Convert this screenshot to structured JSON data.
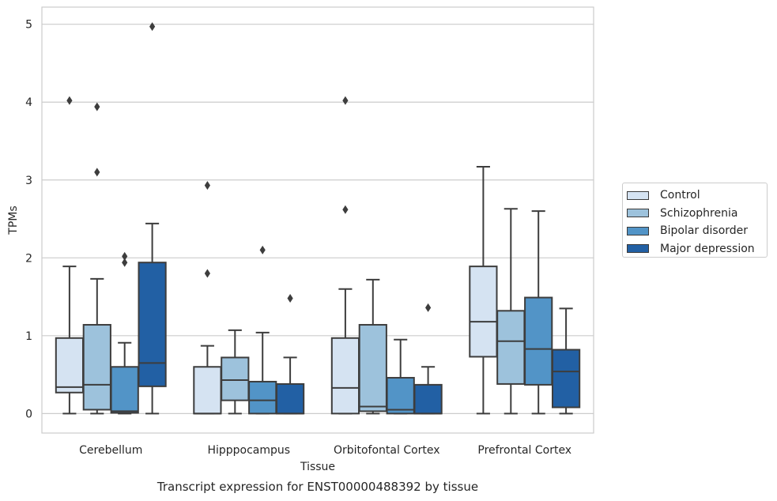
{
  "chart_data": {
    "type": "box",
    "title": "Transcript expression for ENST00000488392 by tissue",
    "xlabel": "Tissue",
    "ylabel": "TPMs",
    "ylim": [
      -0.25,
      5.22
    ],
    "yticks": [
      0,
      1,
      2,
      3,
      4,
      5
    ],
    "grid": "horizontal",
    "legend_position": "right",
    "categories": [
      "Cerebellum",
      "Hipppocampus",
      "Orbitofontal Cortex",
      "Prefrontal Cortex"
    ],
    "series": [
      {
        "name": "Control",
        "color": "#d5e3f2",
        "boxes": [
          {
            "whisker_low": 0.0,
            "q1": 0.27,
            "median": 0.34,
            "q3": 0.97,
            "whisker_high": 1.89,
            "outliers": [
              4.02
            ]
          },
          {
            "whisker_low": 0.0,
            "q1": 0.0,
            "median": 0.0,
            "q3": 0.6,
            "whisker_high": 0.87,
            "outliers": [
              1.8,
              2.93
            ]
          },
          {
            "whisker_low": 0.0,
            "q1": 0.0,
            "median": 0.33,
            "q3": 0.97,
            "whisker_high": 1.6,
            "outliers": [
              2.62,
              4.02
            ]
          },
          {
            "whisker_low": 0.0,
            "q1": 0.73,
            "median": 1.18,
            "q3": 1.89,
            "whisker_high": 3.17,
            "outliers": []
          }
        ]
      },
      {
        "name": "Schizophrenia",
        "color": "#9dc2dc",
        "boxes": [
          {
            "whisker_low": 0.0,
            "q1": 0.05,
            "median": 0.37,
            "q3": 1.14,
            "whisker_high": 1.73,
            "outliers": [
              3.1,
              3.94
            ]
          },
          {
            "whisker_low": 0.0,
            "q1": 0.17,
            "median": 0.43,
            "q3": 0.72,
            "whisker_high": 1.07,
            "outliers": []
          },
          {
            "whisker_low": 0.0,
            "q1": 0.03,
            "median": 0.09,
            "q3": 1.14,
            "whisker_high": 1.72,
            "outliers": []
          },
          {
            "whisker_low": 0.0,
            "q1": 0.38,
            "median": 0.93,
            "q3": 1.32,
            "whisker_high": 2.63,
            "outliers": []
          }
        ]
      },
      {
        "name": "Bipolar disorder",
        "color": "#5294c7",
        "boxes": [
          {
            "whisker_low": 0.0,
            "q1": 0.01,
            "median": 0.03,
            "q3": 0.6,
            "whisker_high": 0.91,
            "outliers": [
              1.94,
              2.02
            ]
          },
          {
            "whisker_low": 0.0,
            "q1": 0.0,
            "median": 0.17,
            "q3": 0.41,
            "whisker_high": 1.04,
            "outliers": [
              2.1
            ]
          },
          {
            "whisker_low": 0.0,
            "q1": 0.0,
            "median": 0.05,
            "q3": 0.46,
            "whisker_high": 0.95,
            "outliers": []
          },
          {
            "whisker_low": 0.0,
            "q1": 0.37,
            "median": 0.83,
            "q3": 1.49,
            "whisker_high": 2.6,
            "outliers": []
          }
        ]
      },
      {
        "name": "Major depression",
        "color": "#2260a4",
        "boxes": [
          {
            "whisker_low": 0.0,
            "q1": 0.35,
            "median": 0.65,
            "q3": 1.94,
            "whisker_high": 2.44,
            "outliers": [
              4.97
            ]
          },
          {
            "whisker_low": 0.0,
            "q1": 0.0,
            "median": 0.0,
            "q3": 0.38,
            "whisker_high": 0.72,
            "outliers": [
              1.48
            ]
          },
          {
            "whisker_low": 0.0,
            "q1": 0.0,
            "median": 0.0,
            "q3": 0.37,
            "whisker_high": 0.6,
            "outliers": [
              1.36
            ]
          },
          {
            "whisker_low": 0.0,
            "q1": 0.08,
            "median": 0.54,
            "q3": 0.82,
            "whisker_high": 1.35,
            "outliers": []
          }
        ]
      }
    ]
  }
}
